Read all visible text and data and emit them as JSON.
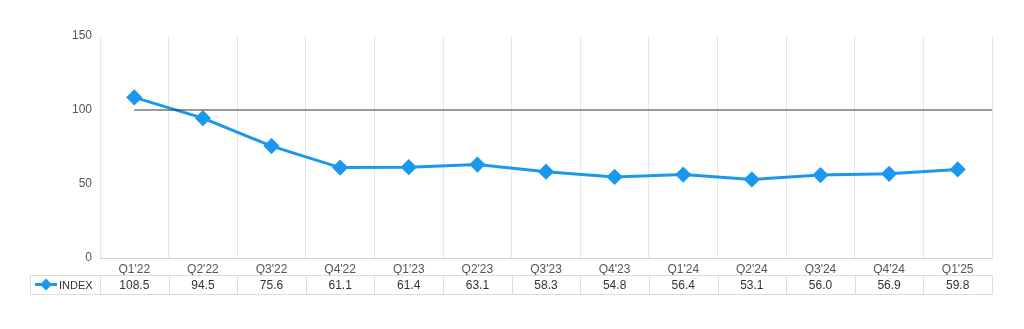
{
  "chart_data": {
    "type": "line",
    "categories": [
      "Q1'22",
      "Q2'22",
      "Q3'22",
      "Q4'22",
      "Q1'23",
      "Q2'23",
      "Q3'23",
      "Q4'23",
      "Q1'24",
      "Q2'24",
      "Q3'24",
      "Q4'24",
      "Q1'25"
    ],
    "series": [
      {
        "name": "INDEX",
        "color": "#1a98ee",
        "values": [
          108.5,
          94.5,
          75.6,
          61.1,
          61.4,
          63.1,
          58.3,
          54.8,
          56.4,
          53.1,
          56.0,
          56.9,
          59.8
        ]
      }
    ],
    "value_labels": [
      "108.5",
      "94.5",
      "75.6",
      "61.1",
      "61.4",
      "63.1",
      "58.3",
      "54.8",
      "56.4",
      "53.1",
      "56.0",
      "56.9",
      "59.8"
    ],
    "ylim": [
      0,
      150
    ],
    "yticks": [
      0,
      50,
      100,
      150
    ],
    "grid": "x",
    "marker": "diamond",
    "line_style": "solid",
    "legend": "bottom left",
    "ref_lines": [
      {
        "axis": "y",
        "value": 100,
        "color": "#333333"
      }
    ]
  }
}
